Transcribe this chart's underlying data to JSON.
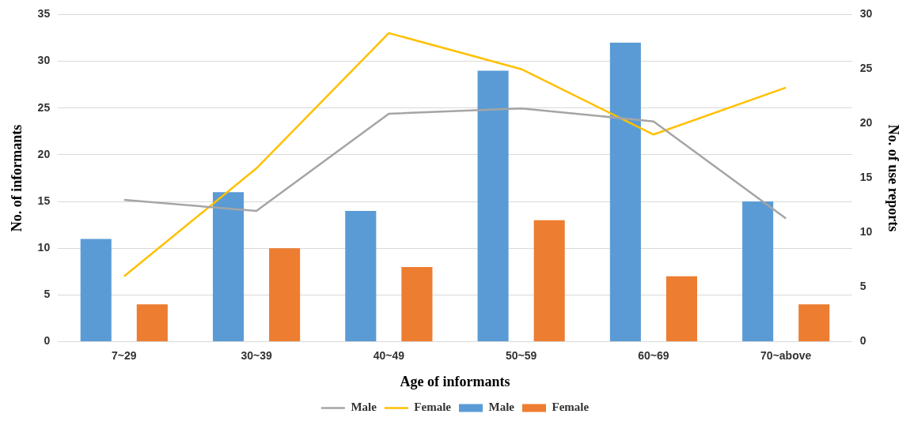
{
  "chart_data": {
    "type": "bar",
    "xlabel": "Age of informants",
    "ylabel": "No. of informants",
    "y2label": "No. of use reports",
    "categories": [
      "7~29",
      "30~39",
      "40~49",
      "50~59",
      "60~69",
      "70~above"
    ],
    "series": [
      {
        "name": "Male",
        "color": "#5b9bd5",
        "values": [
          11,
          16,
          14,
          29,
          32,
          15
        ]
      },
      {
        "name": "Female",
        "color": "#ed7d31",
        "values": [
          4,
          10,
          8,
          13,
          7,
          4
        ]
      },
      {
        "name": "Male",
        "type": "line",
        "axis": "y2",
        "color": "#a5a5a5",
        "values": [
          13,
          12,
          20.9,
          21.4,
          20.2,
          11.3
        ]
      },
      {
        "name": "Female",
        "type": "line",
        "axis": "y2",
        "color": "#ffc000",
        "values": [
          6,
          15.9,
          28.3,
          25,
          19,
          23.3
        ]
      }
    ],
    "ylim": [
      0,
      35
    ],
    "yticks": [
      0,
      5,
      10,
      15,
      20,
      25,
      30,
      35
    ],
    "y2lim": [
      0,
      30
    ],
    "y2ticks": [
      0,
      5,
      10,
      15,
      20,
      25,
      30
    ],
    "grid": "y",
    "legend": "bottom",
    "marker": "none",
    "line_style": "solid"
  }
}
